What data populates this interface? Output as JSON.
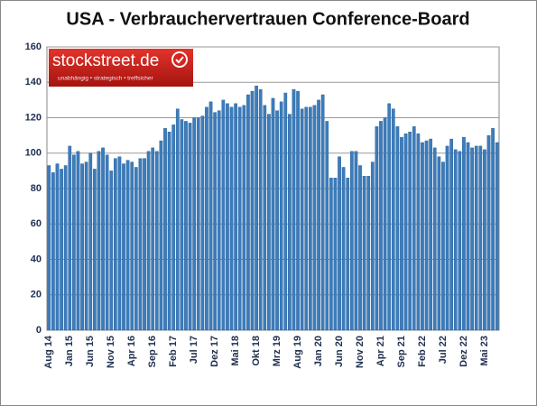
{
  "chart_data": {
    "type": "bar",
    "title": "USA - Verbrauchervertrauen Conference-Board",
    "logo": {
      "name": "stockstreet.de",
      "tagline": "unabhängig • strategisch • treffsicher"
    },
    "categories": [
      "Aug 14",
      null,
      null,
      null,
      null,
      "Jan 15",
      null,
      null,
      null,
      null,
      "Jun 15",
      null,
      null,
      null,
      null,
      "Nov 15",
      null,
      null,
      null,
      null,
      "Apr 16",
      null,
      null,
      null,
      null,
      "Sep 16",
      null,
      null,
      null,
      null,
      "Feb 17",
      null,
      null,
      null,
      null,
      "Jul 17",
      null,
      null,
      null,
      null,
      "Dez 17",
      null,
      null,
      null,
      null,
      "Mai 18",
      null,
      null,
      null,
      null,
      "Okt 18",
      null,
      null,
      null,
      null,
      "Mrz 19",
      null,
      null,
      null,
      null,
      "Aug 19",
      null,
      null,
      null,
      null,
      "Jan 20",
      null,
      null,
      null,
      null,
      "Jun 20",
      null,
      null,
      null,
      null,
      "Nov 20",
      null,
      null,
      null,
      null,
      "Apr 21",
      null,
      null,
      null,
      null,
      "Sep 21",
      null,
      null,
      null,
      null,
      "Feb 22",
      null,
      null,
      null,
      null,
      "Jul 22",
      null,
      null,
      null,
      null,
      "Dez 22",
      null,
      null,
      null,
      null,
      "Mai 23",
      null,
      null,
      null
    ],
    "values": [
      93,
      89,
      94,
      91,
      93,
      104,
      99,
      101,
      94,
      95,
      100,
      91,
      101,
      103,
      99,
      90,
      97,
      98,
      94,
      96,
      95,
      92,
      97,
      97,
      101,
      103,
      101,
      107,
      114,
      112,
      116,
      125,
      119,
      118,
      117,
      120,
      120,
      121,
      126,
      129,
      123,
      124,
      130,
      128,
      126,
      128,
      126,
      127,
      133,
      135,
      138,
      136,
      127,
      122,
      131,
      124,
      129,
      134,
      122,
      136,
      135,
      125,
      126,
      126,
      127,
      130,
      133,
      118,
      86,
      86,
      98,
      92,
      86,
      101,
      101,
      93,
      87,
      87,
      95,
      115,
      118,
      120,
      128,
      125,
      115,
      109,
      111,
      112,
      115,
      111,
      106,
      107,
      108,
      103,
      98,
      95,
      104,
      108,
      102,
      101,
      109,
      106,
      103,
      104,
      104,
      102,
      110,
      114,
      106
    ],
    "color": "#3b7cbc",
    "ylim": [
      0,
      160
    ],
    "yticks": [
      0,
      20,
      40,
      60,
      80,
      100,
      120,
      140,
      160
    ],
    "grid": true
  }
}
